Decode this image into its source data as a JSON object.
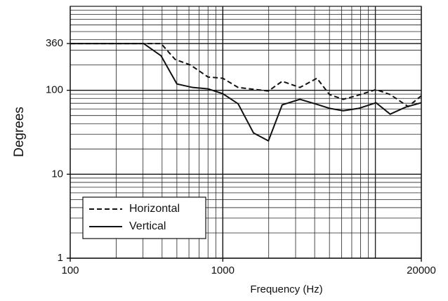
{
  "chart_data": {
    "type": "line",
    "x_label": "Frequency (Hz)",
    "y_label": "Degrees",
    "log_x": true,
    "log_y": true,
    "grid": true,
    "xlim": [
      100,
      20000
    ],
    "ylim": [
      1,
      1000
    ],
    "xticks": [
      100,
      1000,
      20000
    ],
    "yticks": [
      1,
      10,
      100,
      360
    ],
    "x_minor_grid": [
      200,
      300,
      400,
      500,
      600,
      700,
      800,
      900,
      2000,
      3000,
      4000,
      5000,
      6000,
      7000,
      8000,
      9000,
      10000
    ],
    "y_minor_grid": [
      2,
      3,
      4,
      5,
      6,
      7,
      8,
      9,
      20,
      30,
      40,
      50,
      60,
      70,
      80,
      90,
      200,
      300,
      400,
      500,
      600,
      700,
      800,
      900,
      1000
    ],
    "legend": "lower left",
    "series": [
      {
        "name": "Horizontal",
        "color": "#111111",
        "dash": true,
        "x": [
          100,
          394,
          487,
          614,
          800,
          1000,
          1260,
          1990,
          2450,
          3200,
          4140,
          5000,
          6150,
          8000,
          10100,
          12500,
          16400,
          20000
        ],
        "values": [
          360,
          360,
          233,
          200,
          144,
          139,
          108,
          98,
          128,
          108,
          139,
          89,
          78,
          89,
          102,
          89,
          64,
          86
        ]
      },
      {
        "name": "Vertical",
        "color": "#111111",
        "dash": false,
        "x": [
          100,
          303,
          394,
          500,
          635,
          800,
          1000,
          1260,
          1590,
          1990,
          2450,
          3200,
          4030,
          5000,
          6150,
          7800,
          10100,
          12500,
          15800,
          20000
        ],
        "values": [
          360,
          360,
          257,
          119,
          108,
          104,
          91,
          69,
          31,
          25,
          67,
          78,
          69,
          61,
          57,
          61,
          71,
          52,
          63,
          71
        ]
      }
    ]
  }
}
